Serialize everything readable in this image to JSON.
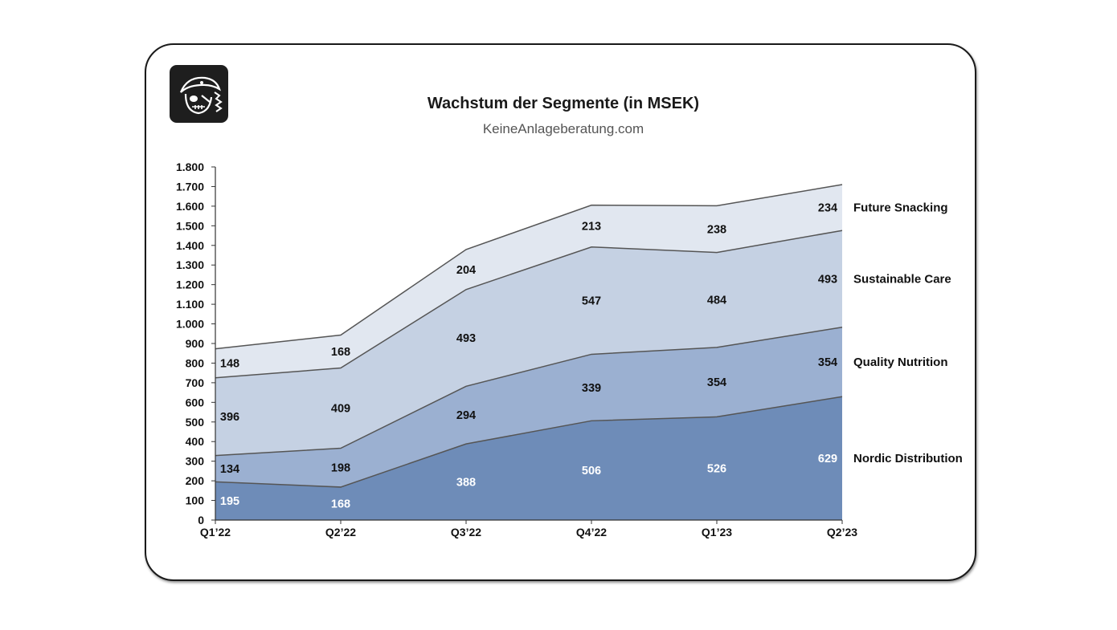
{
  "colors": {
    "Nordic Distribution": "#6e8cb8",
    "Quality Nutrition": "#9bb0d1",
    "Sustainable Care": "#c5d1e3",
    "Future Snacking": "#e1e7f0",
    "outline": "#555555",
    "axis": "#333333"
  },
  "logo": {
    "icon": "pirate-skull-icon"
  },
  "chart_data": {
    "type": "area",
    "stacked": true,
    "title": "Wachstum der Segmente (in MSEK)",
    "subtitle": "KeineAnlageberatung.com",
    "xlabel": "",
    "ylabel": "",
    "categories": [
      "Q1’22",
      "Q2’22",
      "Q3’22",
      "Q4’22",
      "Q1’23",
      "Q2’23"
    ],
    "ylim": [
      0,
      1800
    ],
    "yticks": [
      0,
      100,
      200,
      300,
      400,
      500,
      600,
      700,
      800,
      900,
      1000,
      1100,
      1200,
      1300,
      1400,
      1500,
      1600,
      1700,
      1800
    ],
    "ytick_labels": [
      "0",
      "100",
      "200",
      "300",
      "400",
      "500",
      "600",
      "700",
      "800",
      "900",
      "1.000",
      "1.100",
      "1.200",
      "1.300",
      "1.400",
      "1.500",
      "1.600",
      "1.700",
      "1.800"
    ],
    "grid": false,
    "legend": "right (series labels beside last point)",
    "series": [
      {
        "name": "Nordic Distribution",
        "values": [
          195,
          168,
          388,
          506,
          526,
          629
        ]
      },
      {
        "name": "Quality Nutrition",
        "values": [
          134,
          198,
          294,
          339,
          354,
          354
        ]
      },
      {
        "name": "Sustainable Care",
        "values": [
          396,
          409,
          493,
          547,
          484,
          493
        ]
      },
      {
        "name": "Future Snacking",
        "values": [
          148,
          168,
          204,
          213,
          238,
          234
        ]
      }
    ]
  }
}
